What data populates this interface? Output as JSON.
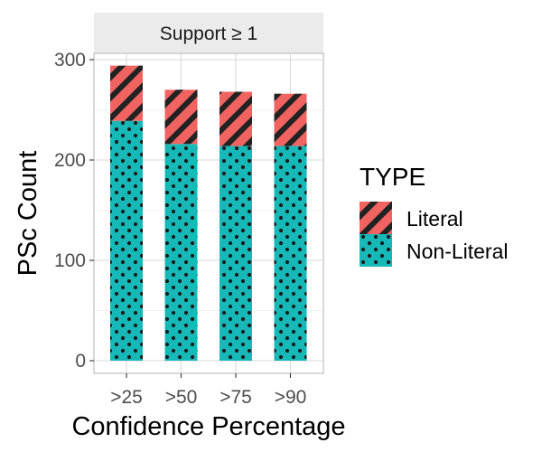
{
  "chart_data": {
    "type": "bar",
    "stacked": true,
    "facet_label": "Support  ≥ 1",
    "categories": [
      ">25",
      ">50",
      ">75",
      ">90"
    ],
    "series": [
      {
        "name": "Non-Literal",
        "values": [
          239,
          216,
          214,
          214
        ],
        "color": "#17B8B8",
        "pattern": "dots"
      },
      {
        "name": "Literal",
        "values": [
          55,
          54,
          54,
          52
        ],
        "color": "#F06360",
        "pattern": "stripes"
      }
    ],
    "xlabel": "Confidence Percentage",
    "ylabel": "PSc Count",
    "ylim": [
      0,
      300
    ],
    "yticks": [
      0,
      100,
      200,
      300
    ],
    "legend": {
      "title": "TYPE",
      "position": "right",
      "entries": [
        "Literal",
        "Non-Literal"
      ]
    },
    "grid": true
  }
}
